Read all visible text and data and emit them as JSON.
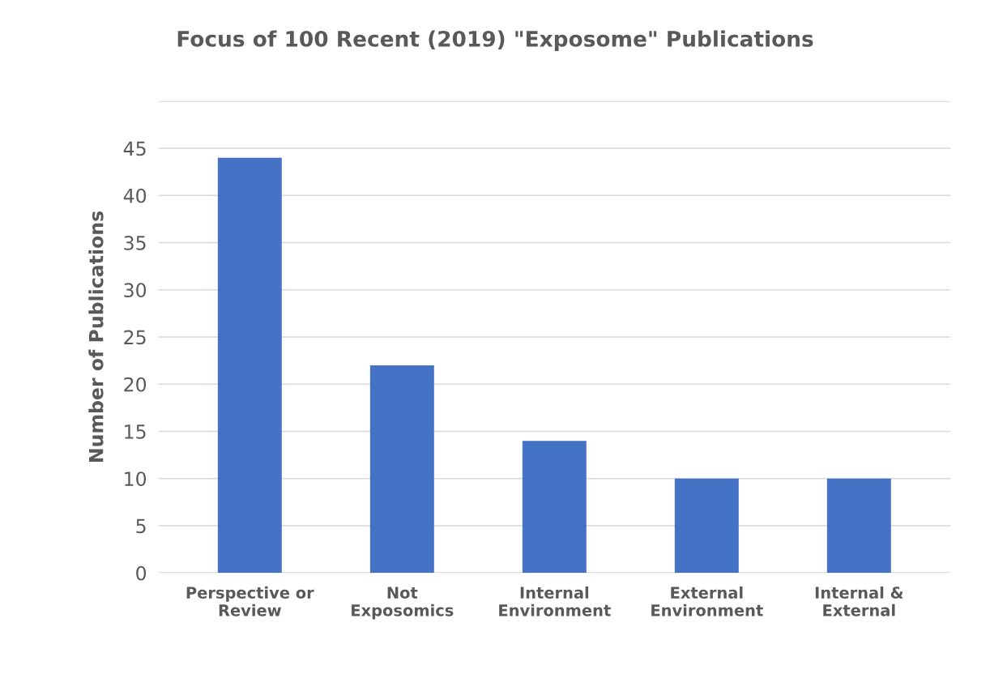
{
  "chart_data": {
    "type": "bar",
    "title": "Focus of 100 Recent (2019) \"Exposome\" Publications",
    "ylabel": "Number of Publications",
    "categories": [
      "Perspective or\nReview",
      "Not\nExposomics",
      "Internal\nEnvironment",
      "External\nEnvironment",
      "Internal &\nExternal"
    ],
    "values": [
      44,
      22,
      14,
      10,
      10
    ],
    "color": "#4472c4",
    "ylim": [
      0,
      50
    ],
    "yticks": [
      0,
      5,
      10,
      15,
      20,
      25,
      30,
      35,
      40,
      45,
      {
        "value": 50,
        "label": null
      }
    ],
    "grid": "y",
    "legend": false
  }
}
